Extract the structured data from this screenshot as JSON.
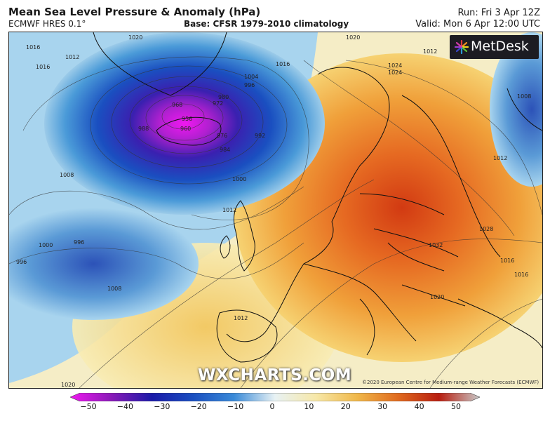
{
  "header": {
    "title": "Mean Sea Level Pressure & Anomaly (hPa)",
    "model": "ECMWF HRES 0.1°",
    "base": "Base: CFSR 1979-2010 climatology",
    "run": "Run: Fri 3 Apr 12Z",
    "valid": "Valid: Mon 6 Apr 12:00 UTC"
  },
  "logo": {
    "text": "MetDesk",
    "icon": "metdesk-logo-icon"
  },
  "watermark": "WXCHARTS.COM",
  "copyright": "©2020 European Centre for Medium-range Weather Forecasts (ECMWF)",
  "colorbar": {
    "ticks": [
      "−50",
      "−40",
      "−30",
      "−20",
      "−10",
      "0",
      "10",
      "20",
      "30",
      "40",
      "50"
    ],
    "colors": [
      "#f018f0",
      "#8a1ab8",
      "#1a1aa8",
      "#1a4fc0",
      "#3a8ad8",
      "#a8d4ee",
      "#f7f2c8",
      "#f4cf6a",
      "#ec8a2a",
      "#d23a12",
      "#6e1010"
    ]
  },
  "isobar_labels": [
    "1016",
    "1016",
    "1012",
    "1024",
    "1016",
    "1012",
    "1004",
    "996",
    "980",
    "972",
    "968",
    "956",
    "960",
    "976",
    "984",
    "992",
    "988",
    "1000",
    "1008",
    "1012",
    "1000",
    "996",
    "996",
    "1008",
    "1020",
    "1020",
    "1012",
    "1008",
    "1012",
    "1028",
    "1032",
    "1016",
    "1020",
    "1024",
    "1020",
    "1016"
  ]
}
